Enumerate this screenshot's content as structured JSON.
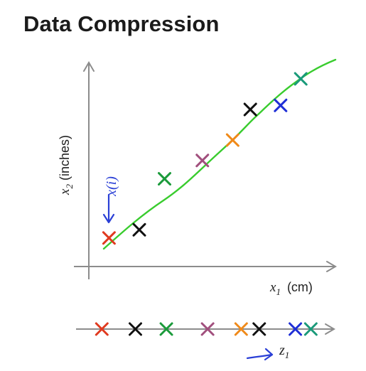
{
  "title": "Data Compression",
  "plot_2d": {
    "y_label_var": "x",
    "y_label_sub": "2",
    "y_label_unit": " (inches)",
    "x_label_var": "x",
    "x_label_sub": "1",
    "x_label_unit": "(cm)",
    "handwritten_note": "x(i)",
    "fit_line_color": "#39cc2e",
    "points": [
      {
        "x": 0.08,
        "y": 0.14,
        "color": "#e03a1f"
      },
      {
        "x": 0.2,
        "y": 0.18,
        "color": "#111111"
      },
      {
        "x": 0.3,
        "y": 0.43,
        "color": "#1a9a3a"
      },
      {
        "x": 0.45,
        "y": 0.52,
        "color": "#a14f7d"
      },
      {
        "x": 0.57,
        "y": 0.62,
        "color": "#f08a1a"
      },
      {
        "x": 0.64,
        "y": 0.77,
        "color": "#111111"
      },
      {
        "x": 0.76,
        "y": 0.79,
        "color": "#1f2fd6"
      },
      {
        "x": 0.84,
        "y": 0.92,
        "color": "#1a9a7a"
      }
    ]
  },
  "projection_1d": {
    "z_label_var": "z",
    "z_label_sub": "1",
    "points": [
      {
        "x": 0.1,
        "color": "#e03a1f"
      },
      {
        "x": 0.23,
        "color": "#111111"
      },
      {
        "x": 0.35,
        "color": "#1a9a3a"
      },
      {
        "x": 0.51,
        "color": "#a14f7d"
      },
      {
        "x": 0.64,
        "color": "#f08a1a"
      },
      {
        "x": 0.71,
        "color": "#111111"
      },
      {
        "x": 0.85,
        "color": "#1f2fd6"
      },
      {
        "x": 0.91,
        "color": "#1a9a7a"
      }
    ]
  }
}
